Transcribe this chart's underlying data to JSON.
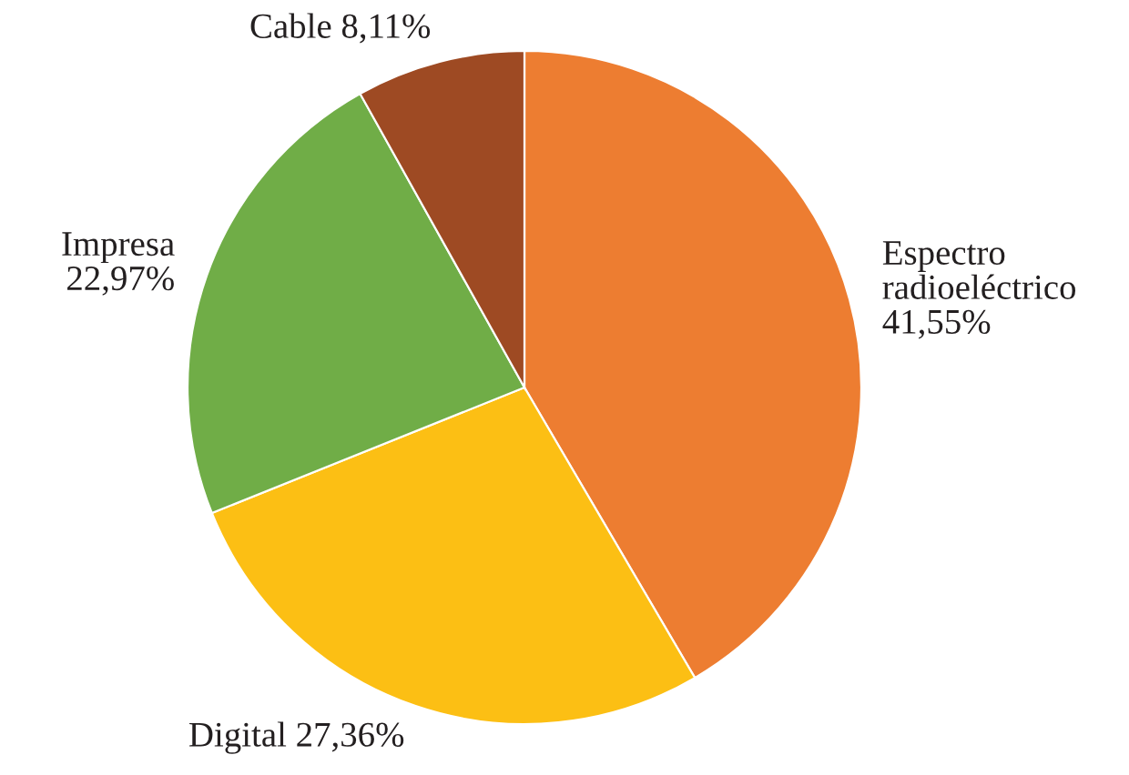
{
  "chart_data": {
    "type": "pie",
    "categories": [
      "Espectro radioeléctrico",
      "Digital",
      "Impresa",
      "Cable"
    ],
    "values": [
      41.55,
      27.36,
      22.97,
      8.11
    ],
    "value_labels": [
      "41,55%",
      "27,36%",
      "22,97%",
      "8,11%"
    ],
    "colors": [
      "#ed7d31",
      "#fcbf14",
      "#70ad47",
      "#9e4a23"
    ]
  }
}
